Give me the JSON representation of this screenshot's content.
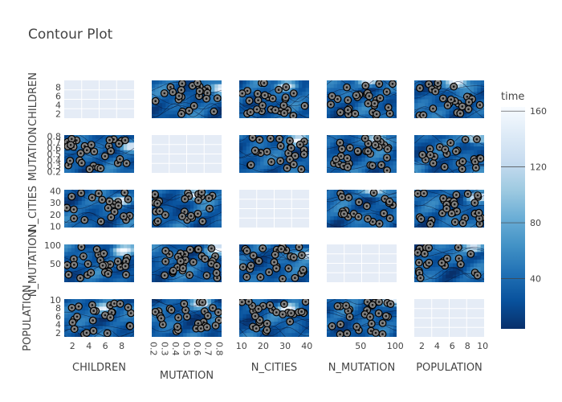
{
  "title": "Contour Plot",
  "colorbar": {
    "title": "time",
    "range": [
      4,
      163
    ],
    "ticks": [
      40,
      80,
      120,
      160
    ],
    "colorscale": [
      "#08306b",
      "#08519c",
      "#2171b5",
      "#4292c6",
      "#6baed6",
      "#9ecae1",
      "#c6dbef",
      "#deebf7",
      "#f7fbff"
    ]
  },
  "chart_data": {
    "type": "contour-matrix",
    "params": [
      "CHILDREN",
      "MUTATION",
      "N_CITIES",
      "N_MUTATION",
      "POPULATION"
    ],
    "color_metric": "time",
    "diagonal": "empty",
    "axes": {
      "CHILDREN": {
        "range": [
          1,
          9.5
        ],
        "ticks": [
          2,
          4,
          6,
          8
        ]
      },
      "MUTATION": {
        "range": [
          0.18,
          0.82
        ],
        "ticks": [
          0.2,
          0.3,
          0.4,
          0.5,
          0.6,
          0.7,
          0.8
        ]
      },
      "N_CITIES": {
        "range": [
          9,
          41
        ],
        "ticks": [
          10,
          20,
          30,
          40
        ]
      },
      "N_MUTATION": {
        "range": [
          1,
          102
        ],
        "ticks": [
          50,
          100
        ]
      },
      "POPULATION": {
        "range": [
          1,
          10.2
        ],
        "ticks": [
          2,
          4,
          6,
          8,
          10
        ]
      }
    }
  }
}
